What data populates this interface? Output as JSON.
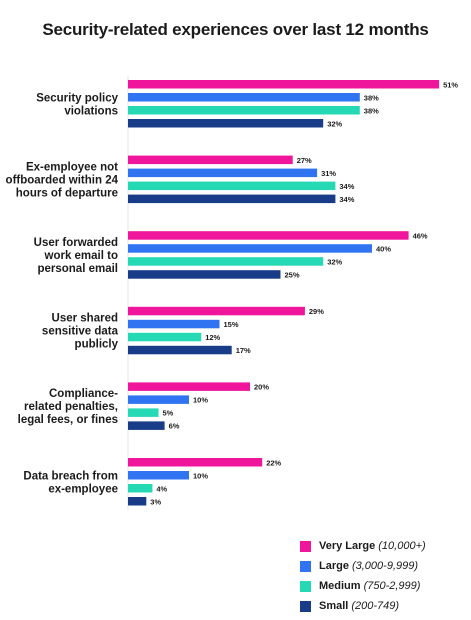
{
  "chart_data": {
    "type": "bar",
    "orientation": "horizontal",
    "title": "Security-related experiences over last 12 months",
    "xlabel": "",
    "ylabel": "",
    "xlim": [
      0,
      51
    ],
    "grid": false,
    "legend_position": "bottom-right",
    "value_suffix": "%",
    "categories": [
      [
        "Security policy",
        "violations"
      ],
      [
        "Ex-employee not",
        "offboarded within 24",
        "hours of departure"
      ],
      [
        "User forwarded",
        "work email to",
        "personal email"
      ],
      [
        "User shared",
        "sensitive data",
        "publicly"
      ],
      [
        "Compliance-",
        "related penalties,",
        "legal fees, or fines"
      ],
      [
        "Data breach from",
        "ex-employee"
      ]
    ],
    "series": [
      {
        "name": "Very Large",
        "range": "(10,000+)",
        "color": "#f0169b",
        "values": [
          51,
          27,
          46,
          29,
          20,
          22
        ]
      },
      {
        "name": "Large",
        "range": "(3,000-9,999)",
        "color": "#3174f1",
        "values": [
          38,
          31,
          40,
          15,
          10,
          10
        ]
      },
      {
        "name": "Medium",
        "range": "(750-2,999)",
        "color": "#25d9b4",
        "values": [
          38,
          34,
          32,
          12,
          5,
          4
        ]
      },
      {
        "name": "Small",
        "range": "(200-749)",
        "color": "#193c88",
        "values": [
          32,
          34,
          25,
          17,
          6,
          3
        ]
      }
    ]
  }
}
